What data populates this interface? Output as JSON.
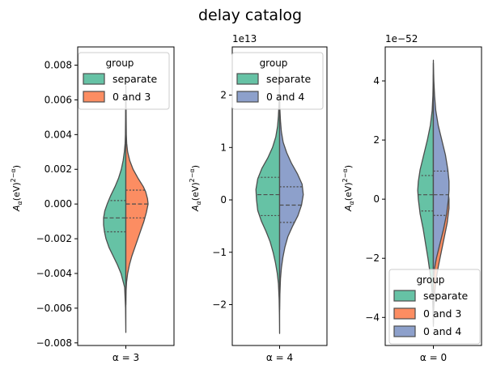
{
  "chart_data": {
    "title": "delay catalog",
    "type": "violin",
    "colors": {
      "separate": "#66c2a5",
      "0 and 3": "#fc8d62",
      "0 and 4": "#8da0cb",
      "edge": "#4d4d4d"
    },
    "panels": [
      {
        "xlabel": "α = 3",
        "ylabel": "Aα(eV)²⁻ᵅ",
        "offset": "",
        "ylim": [
          -0.00815,
          0.00905
        ],
        "yticks": [
          0.008,
          0.006,
          0.004,
          0.002,
          0.0,
          -0.002,
          -0.004,
          -0.006,
          -0.008
        ],
        "ytick_labels": [
          "0.008",
          "0.006",
          "0.004",
          "0.002",
          "0.000",
          "−0.002",
          "−0.004",
          "−0.006",
          "−0.008"
        ],
        "legend": {
          "title": "group",
          "entries": [
            "separate",
            "0 and 3"
          ],
          "loc": "upper-left"
        },
        "violins": [
          {
            "group": "separate",
            "side": "left",
            "max_half_width": 0.37,
            "profile": [
              [
                -0.0074,
                0
              ],
              [
                -0.006,
                0.005
              ],
              [
                -0.0048,
                0.02
              ],
              [
                -0.004,
                0.08
              ],
              [
                -0.0035,
                0.14
              ],
              [
                -0.003,
                0.21
              ],
              [
                -0.0025,
                0.28
              ],
              [
                -0.002,
                0.33
              ],
              [
                -0.0016,
                0.355
              ],
              [
                -0.0012,
                0.37
              ],
              [
                -0.0008,
                0.37
              ],
              [
                -0.0004,
                0.35
              ],
              [
                0.0,
                0.31
              ],
              [
                0.0005,
                0.25
              ],
              [
                0.001,
                0.18
              ],
              [
                0.0015,
                0.12
              ],
              [
                0.002,
                0.075
              ],
              [
                0.0025,
                0.045
              ],
              [
                0.003,
                0.025
              ],
              [
                0.0035,
                0.012
              ],
              [
                0.004,
                0.007
              ],
              [
                0.005,
                0.004
              ],
              [
                0.0058,
                0.003
              ],
              [
                0.0064,
                0
              ]
            ],
            "quartiles": [
              -0.0016,
              -0.0008,
              0.0002
            ]
          },
          {
            "group": "0 and 3",
            "side": "right",
            "max_half_width": 0.37,
            "profile": [
              [
                -0.0058,
                0
              ],
              [
                -0.005,
                0.004
              ],
              [
                -0.0045,
                0.012
              ],
              [
                -0.004,
                0.03
              ],
              [
                -0.0035,
                0.06
              ],
              [
                -0.003,
                0.1
              ],
              [
                -0.0025,
                0.15
              ],
              [
                -0.002,
                0.2
              ],
              [
                -0.0015,
                0.25
              ],
              [
                -0.001,
                0.3
              ],
              [
                -0.0005,
                0.34
              ],
              [
                0.0,
                0.37
              ],
              [
                0.0003,
                0.36
              ],
              [
                0.0007,
                0.33
              ],
              [
                0.001,
                0.29
              ],
              [
                0.0015,
                0.2
              ],
              [
                0.002,
                0.12
              ],
              [
                0.0025,
                0.065
              ],
              [
                0.003,
                0.03
              ],
              [
                0.0035,
                0.014
              ],
              [
                0.004,
                0.008
              ],
              [
                0.005,
                0.005
              ],
              [
                0.006,
                0.003
              ],
              [
                0.0068,
                0
              ]
            ],
            "quartiles": [
              -0.0008,
              0.0,
              0.0008
            ]
          }
        ]
      },
      {
        "xlabel": "α = 4",
        "ylabel": "Aα(eV)²⁻ᵅ",
        "offset": "1e13",
        "ylim": [
          -2.78,
          2.92
        ],
        "yticks": [
          2,
          1,
          0,
          -1,
          -2
        ],
        "ytick_labels": [
          "2",
          "1",
          "0",
          "−1",
          "−2"
        ],
        "legend": {
          "title": "group",
          "entries": [
            "separate",
            "0 and 4"
          ],
          "loc": "upper-right"
        },
        "violins": [
          {
            "group": "separate",
            "side": "left",
            "max_half_width": 0.4,
            "profile": [
              [
                -2.55,
                0
              ],
              [
                -2.2,
                0.003
              ],
              [
                -1.9,
                0.008
              ],
              [
                -1.6,
                0.02
              ],
              [
                -1.4,
                0.04
              ],
              [
                -1.2,
                0.07
              ],
              [
                -1.0,
                0.11
              ],
              [
                -0.8,
                0.16
              ],
              [
                -0.6,
                0.23
              ],
              [
                -0.4,
                0.31
              ],
              [
                -0.2,
                0.37
              ],
              [
                0.0,
                0.39
              ],
              [
                0.2,
                0.4
              ],
              [
                0.4,
                0.37
              ],
              [
                0.6,
                0.3
              ],
              [
                0.8,
                0.2
              ],
              [
                1.0,
                0.12
              ],
              [
                1.2,
                0.065
              ],
              [
                1.4,
                0.035
              ],
              [
                1.6,
                0.02
              ],
              [
                1.9,
                0.008
              ],
              [
                2.2,
                0.003
              ],
              [
                2.55,
                0
              ]
            ],
            "quartiles": [
              -0.3,
              0.1,
              0.43
            ]
          },
          {
            "group": "0 and 4",
            "side": "right",
            "max_half_width": 0.4,
            "profile": [
              [
                -2.1,
                0
              ],
              [
                -1.8,
                0.005
              ],
              [
                -1.5,
                0.015
              ],
              [
                -1.3,
                0.03
              ],
              [
                -1.1,
                0.055
              ],
              [
                -0.9,
                0.09
              ],
              [
                -0.7,
                0.14
              ],
              [
                -0.5,
                0.22
              ],
              [
                -0.3,
                0.31
              ],
              [
                -0.1,
                0.37
              ],
              [
                0.1,
                0.4
              ],
              [
                0.3,
                0.38
              ],
              [
                0.5,
                0.3
              ],
              [
                0.7,
                0.2
              ],
              [
                0.9,
                0.12
              ],
              [
                1.1,
                0.06
              ],
              [
                1.3,
                0.03
              ],
              [
                1.5,
                0.015
              ],
              [
                1.7,
                0.006
              ],
              [
                1.9,
                0.002
              ],
              [
                2.05,
                0
              ]
            ],
            "quartiles": [
              -0.43,
              -0.1,
              0.25
            ]
          }
        ]
      },
      {
        "xlabel": "α = 0",
        "ylabel": "Aα(eV)²⁻ᵅ",
        "offset": "1e−52",
        "ylim": [
          -4.95,
          5.15
        ],
        "yticks": [
          4,
          2,
          0,
          -2,
          -4
        ],
        "ytick_labels": [
          "4",
          "2",
          "0",
          "−2",
          "−4"
        ],
        "legend": {
          "title": "group",
          "entries": [
            "separate",
            "0 and 3",
            "0 and 4"
          ],
          "loc": "lower-right"
        },
        "violins": [
          {
            "group": "separate",
            "side": "left",
            "max_half_width": 0.26,
            "profile": [
              [
                -4.2,
                0
              ],
              [
                -3.8,
                0.005
              ],
              [
                -3.3,
                0.015
              ],
              [
                -2.9,
                0.03
              ],
              [
                -2.5,
                0.055
              ],
              [
                -2.0,
                0.09
              ],
              [
                -1.5,
                0.13
              ],
              [
                -1.0,
                0.17
              ],
              [
                -0.5,
                0.22
              ],
              [
                0.0,
                0.25
              ],
              [
                0.3,
                0.26
              ],
              [
                0.6,
                0.25
              ],
              [
                1.0,
                0.22
              ],
              [
                1.5,
                0.16
              ],
              [
                2.0,
                0.1
              ],
              [
                2.5,
                0.05
              ],
              [
                3.0,
                0.02
              ],
              [
                3.5,
                0.008
              ],
              [
                4.0,
                0.003
              ],
              [
                4.7,
                0
              ]
            ],
            "quartiles": [
              -0.4,
              0.15,
              0.8
            ]
          },
          {
            "group": "0 and 3",
            "side": "right",
            "max_half_width": 0.26,
            "profile": [
              [
                -4.3,
                0
              ],
              [
                -3.8,
                0.005
              ],
              [
                -3.3,
                0.015
              ],
              [
                -2.8,
                0.04
              ],
              [
                -2.3,
                0.08
              ],
              [
                -1.8,
                0.13
              ],
              [
                -1.3,
                0.18
              ],
              [
                -0.8,
                0.23
              ],
              [
                -0.3,
                0.26
              ],
              [
                0.0,
                0.26
              ],
              [
                0.4,
                0.24
              ],
              [
                0.8,
                0.19
              ],
              [
                1.2,
                0.13
              ],
              [
                1.6,
                0.08
              ],
              [
                2.0,
                0.045
              ],
              [
                2.5,
                0.02
              ],
              [
                3.0,
                0.008
              ],
              [
                3.6,
                0.003
              ],
              [
                4.2,
                0
              ]
            ],
            "quartiles": [
              -0.75,
              0.0,
              0.75
            ]
          },
          {
            "group": "0 and 4",
            "side": "right",
            "max_half_width": 0.26,
            "profile": [
              [
                -2.8,
                0
              ],
              [
                -2.4,
                0.015
              ],
              [
                -2.0,
                0.05
              ],
              [
                -1.5,
                0.11
              ],
              [
                -1.0,
                0.17
              ],
              [
                -0.5,
                0.22
              ],
              [
                0.0,
                0.25
              ],
              [
                0.3,
                0.26
              ],
              [
                0.6,
                0.26
              ],
              [
                1.0,
                0.24
              ],
              [
                1.5,
                0.2
              ],
              [
                2.0,
                0.14
              ],
              [
                2.5,
                0.08
              ],
              [
                3.0,
                0.04
              ],
              [
                3.5,
                0.02
              ],
              [
                4.0,
                0.008
              ],
              [
                4.6,
                0
              ]
            ],
            "quartiles": [
              -0.55,
              0.15,
              0.95
            ]
          }
        ]
      }
    ]
  }
}
